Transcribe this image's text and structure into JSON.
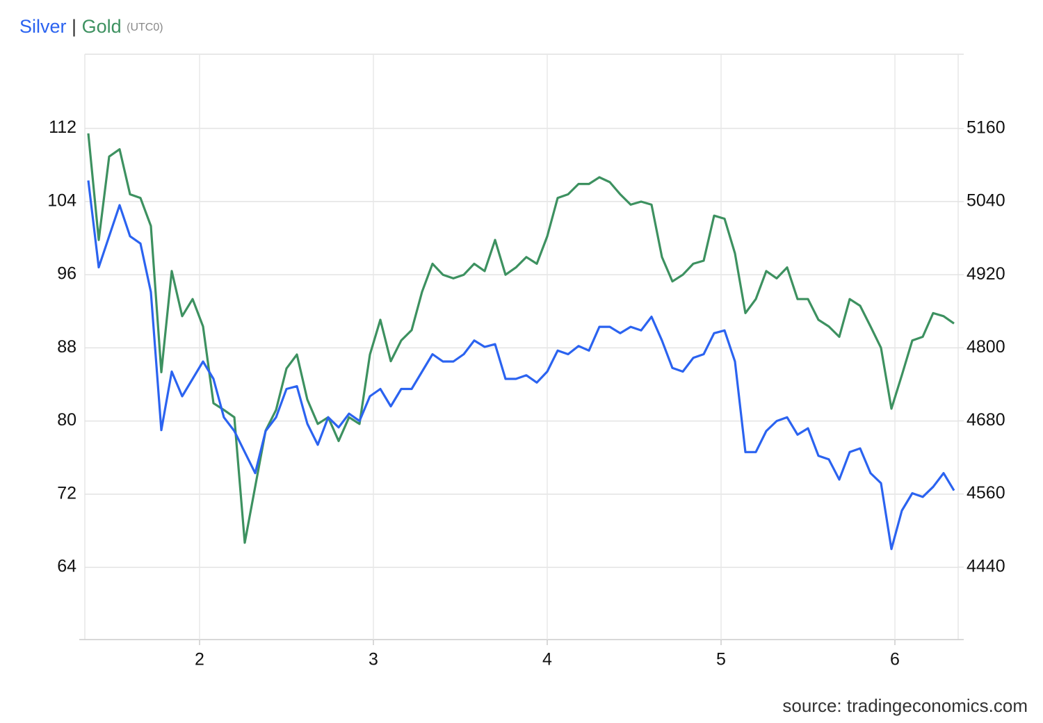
{
  "chart_data": {
    "type": "line",
    "title_separator": "|",
    "timezone": "(UTC0)",
    "source": "source: tradingeconomics.com",
    "x": [
      1.36,
      1.42,
      1.48,
      1.54,
      1.6,
      1.66,
      1.72,
      1.78,
      1.84,
      1.9,
      1.96,
      2.02,
      2.08,
      2.14,
      2.2,
      2.26,
      2.32,
      2.38,
      2.44,
      2.5,
      2.56,
      2.62,
      2.68,
      2.74,
      2.8,
      2.86,
      2.92,
      2.98,
      3.04,
      3.1,
      3.16,
      3.22,
      3.28,
      3.34,
      3.4,
      3.46,
      3.52,
      3.58,
      3.64,
      3.7,
      3.76,
      3.82,
      3.88,
      3.94,
      4,
      4.06,
      4.12,
      4.18,
      4.24,
      4.3,
      4.36,
      4.42,
      4.48,
      4.54,
      4.6,
      4.66,
      4.72,
      4.78,
      4.84,
      4.9,
      4.96,
      5.02,
      5.08,
      5.14,
      5.2,
      5.26,
      5.32,
      5.38,
      5.44,
      5.5,
      5.56,
      5.62,
      5.68,
      5.74,
      5.8,
      5.86,
      5.92,
      5.98,
      6.04,
      6.1,
      6.16,
      6.22,
      6.28,
      6.34
    ],
    "series": [
      {
        "name": "Silver",
        "color": "#2b63f0",
        "axis": "y",
        "values": [
          106.3,
          96.8,
          100.2,
          103.6,
          100.2,
          99.4,
          94.1,
          79,
          85.4,
          82.7,
          84.6,
          86.5,
          84.6,
          80.4,
          78.9,
          76.6,
          74.3,
          78.9,
          80.4,
          83.5,
          83.8,
          79.7,
          77.4,
          80.4,
          79.3,
          80.8,
          80,
          82.7,
          83.5,
          81.6,
          83.5,
          83.5,
          85.4,
          87.3,
          86.5,
          86.5,
          87.3,
          88.8,
          88.1,
          88.4,
          84.6,
          84.6,
          85,
          84.2,
          85.4,
          87.7,
          87.3,
          88.2,
          87.7,
          90.3,
          90.3,
          89.6,
          90.3,
          89.9,
          91.4,
          88.8,
          85.8,
          85.4,
          86.9,
          87.3,
          89.6,
          89.9,
          86.5,
          76.6,
          76.6,
          78.9,
          80,
          80.4,
          78.5,
          79.2,
          76.2,
          75.8,
          73.6,
          76.6,
          77,
          74.3,
          73.2,
          66,
          70.2,
          72.1,
          71.7,
          72.8,
          74.3,
          72.4
        ]
      },
      {
        "name": "Gold",
        "color": "#3d9160",
        "axis": "y2",
        "values": [
          5152,
          4977,
          5114,
          5126,
          5052,
          5046,
          5000,
          4760,
          4926,
          4852,
          4880,
          4835,
          4709,
          4698,
          4686,
          4480,
          4572,
          4664,
          4698,
          4766,
          4789,
          4715,
          4675,
          4686,
          4647,
          4686,
          4675,
          4789,
          4846,
          4778,
          4812,
          4829,
          4892,
          4938,
          4920,
          4914,
          4920,
          4938,
          4926,
          4977,
          4920,
          4932,
          4949,
          4938,
          4983,
          5046,
          5052,
          5069,
          5069,
          5080,
          5072,
          5052,
          5035,
          5040,
          5035,
          4949,
          4909,
          4920,
          4938,
          4943,
          5017,
          5012,
          4955,
          4857,
          4880,
          4926,
          4914,
          4932,
          4880,
          4880,
          4846,
          4835,
          4818,
          4880,
          4869,
          4835,
          4800,
          4700,
          4755,
          4812,
          4818,
          4857,
          4852,
          4840
        ]
      }
    ],
    "xlim": [
      1.34,
      6.364
    ],
    "xticks": [
      2,
      3,
      4,
      5,
      6
    ],
    "ylim": [
      56.1,
      120.1
    ],
    "yticks": [
      64,
      72,
      80,
      88,
      96,
      104,
      112
    ],
    "y2lim": [
      4321,
      5282
    ],
    "y2ticks": [
      4440,
      4560,
      4680,
      4800,
      4920,
      5040,
      5160
    ],
    "grid": true
  }
}
